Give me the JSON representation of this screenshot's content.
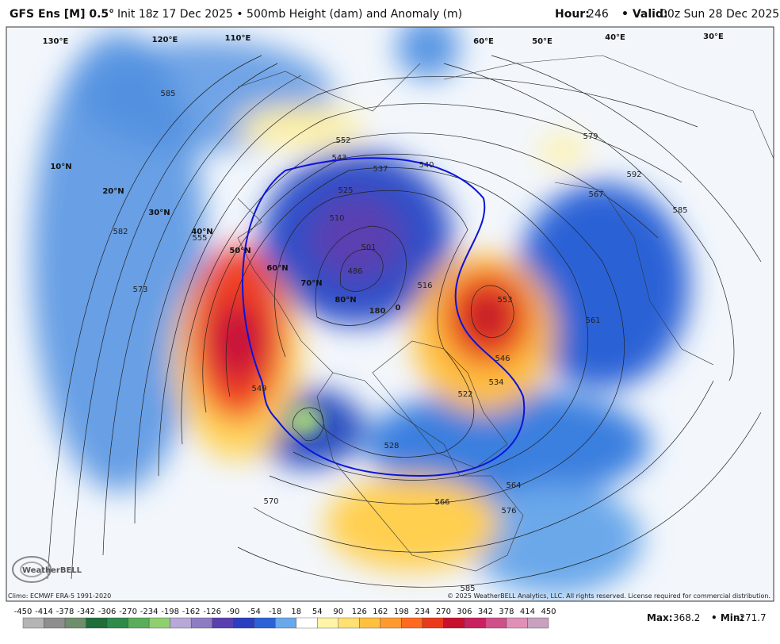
{
  "header": {
    "title": "GFS Ens [M] 0.5°",
    "init": "Init 18z 17 Dec 2025 • 500mb Height (dam) and Anomaly (m)",
    "hour_label": "Hour:",
    "hour": "246",
    "valid_label": "• Valid:",
    "valid": "00z Sun 28 Dec 2025"
  },
  "map": {
    "contour_labels": [
      "585",
      "552",
      "543",
      "537",
      "540",
      "525",
      "510",
      "501",
      "486",
      "516",
      "555",
      "582",
      "573",
      "549",
      "553",
      "546",
      "534",
      "522",
      "528",
      "564",
      "566",
      "576",
      "570",
      "579",
      "592",
      "567",
      "585",
      "561",
      "585"
    ],
    "meridian_labels": [
      "180",
      "0"
    ],
    "latitude_labels": [
      "10°N",
      "20°N",
      "30°N",
      "40°N",
      "50°N",
      "60°N",
      "70°N",
      "80°N"
    ],
    "longitude_labels": [
      "130°E",
      "120°E",
      "110°E",
      "60°E",
      "50°E",
      "40°E",
      "30°E"
    ]
  },
  "colorbar": {
    "ticks": [
      -450,
      -414,
      -378,
      -342,
      -306,
      -270,
      -234,
      -198,
      -162,
      -126,
      -90,
      -54,
      -18,
      18,
      54,
      90,
      126,
      162,
      198,
      234,
      270,
      306,
      342,
      378,
      414,
      450
    ],
    "colors": [
      "#b4b4b4",
      "#8e8e8e",
      "#6e8e6e",
      "#1f6e3a",
      "#2e8b4a",
      "#5aae5a",
      "#8fcf6f",
      "#b8a8d8",
      "#8e7cc3",
      "#5a3fb0",
      "#2a3fc0",
      "#2a62d6",
      "#6aa8ea",
      "#ffffff",
      "#fff4a8",
      "#ffe070",
      "#ffc040",
      "#ff9a30",
      "#ff6a20",
      "#e83a1a",
      "#c8102e",
      "#c82060",
      "#d0508a",
      "#e090b8",
      "#c8a0c0"
    ]
  },
  "footer": {
    "climo": "Climo: ECMWF ERA-5 1991-2020",
    "copyright": "© 2025 WeatherBELL Analytics, LLC. All rights reserved. License required for commercial distribution.",
    "logo": "WeatherBELL",
    "max_label": "Max:",
    "max": "368.2",
    "min_label": "• Min:",
    "min": "-271.7"
  }
}
